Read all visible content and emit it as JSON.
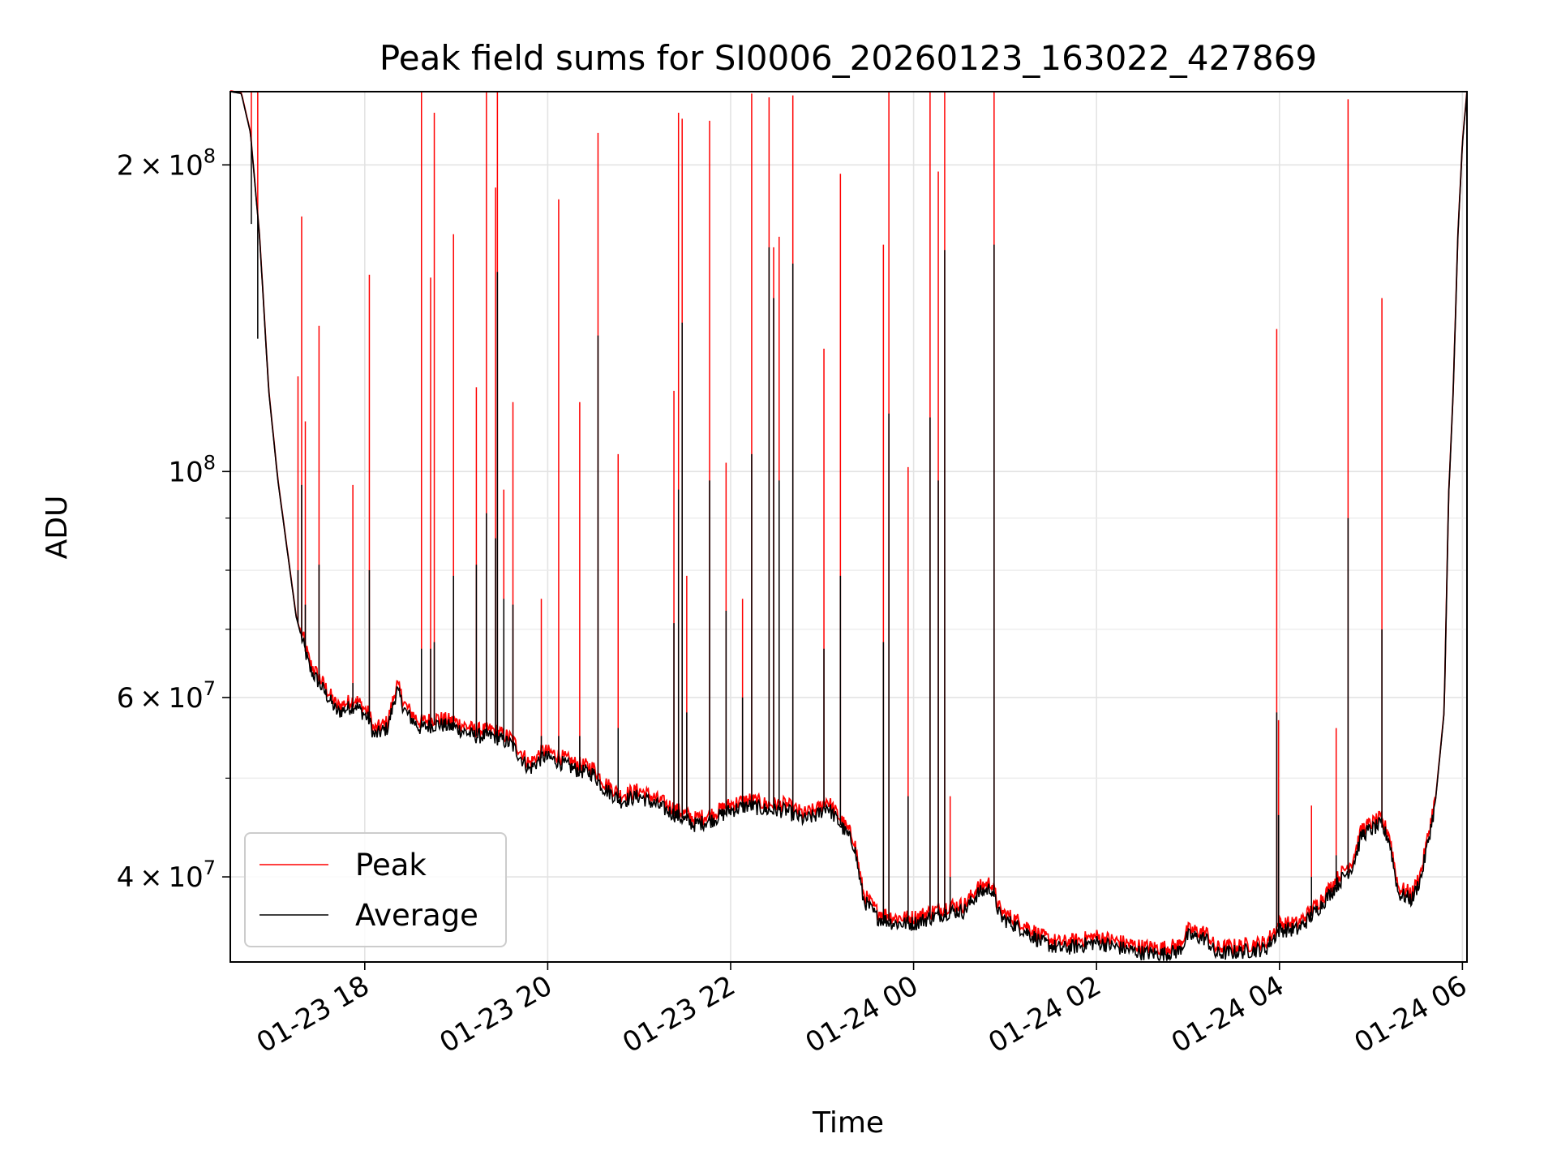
{
  "chart_data": {
    "type": "line",
    "title": "Peak field sums for SI0006_20260123_163022_427869",
    "xlabel": "Time",
    "ylabel": "ADU",
    "yscale": "log",
    "ylim": [
      33000000,
      236000000
    ],
    "xlim_hours": [
      16.53,
      30.05
    ],
    "x_origin": "2026-01-23 00:00",
    "grid": true,
    "legend_position": "lower-left",
    "x_ticks": [
      {
        "hours": 18,
        "label": "01-23 18"
      },
      {
        "hours": 20,
        "label": "01-23 20"
      },
      {
        "hours": 22,
        "label": "01-23 22"
      },
      {
        "hours": 24,
        "label": "01-24 00"
      },
      {
        "hours": 26,
        "label": "01-24 02"
      },
      {
        "hours": 28,
        "label": "01-24 04"
      },
      {
        "hours": 30,
        "label": "01-24 06"
      }
    ],
    "y_ticks": [
      {
        "value": 40000000,
        "mant": "4",
        "exp": "7",
        "kind": "mantissa"
      },
      {
        "value": 60000000,
        "mant": "6",
        "exp": "7",
        "kind": "mantissa"
      },
      {
        "value": 100000000,
        "mant": "10",
        "exp": "8",
        "kind": "power"
      },
      {
        "value": 200000000,
        "mant": "2",
        "exp": "8",
        "kind": "mantissa"
      }
    ],
    "y_minor_ticks": [
      50000000,
      70000000,
      80000000,
      90000000
    ],
    "series": [
      {
        "name": "Peak",
        "color": "#ff0000"
      },
      {
        "name": "Average",
        "color": "#000000"
      }
    ],
    "baseline": [
      [
        16.53,
        236000000
      ],
      [
        16.65,
        235000000
      ],
      [
        16.75,
        215000000
      ],
      [
        16.85,
        170000000
      ],
      [
        16.95,
        120000000
      ],
      [
        17.05,
        98000000
      ],
      [
        17.15,
        84000000
      ],
      [
        17.25,
        72000000
      ],
      [
        17.4,
        64000000
      ],
      [
        17.55,
        61000000
      ],
      [
        17.7,
        58000000
      ],
      [
        17.9,
        59000000
      ],
      [
        18.05,
        57000000
      ],
      [
        18.1,
        55000000
      ],
      [
        18.25,
        56000000
      ],
      [
        18.35,
        61000000
      ],
      [
        18.45,
        58000000
      ],
      [
        18.6,
        56000000
      ],
      [
        18.8,
        56500000
      ],
      [
        19.0,
        56000000
      ],
      [
        19.2,
        55000000
      ],
      [
        19.4,
        55000000
      ],
      [
        19.6,
        54000000
      ],
      [
        19.8,
        51000000
      ],
      [
        19.95,
        52500000
      ],
      [
        20.1,
        52000000
      ],
      [
        20.3,
        51000000
      ],
      [
        20.5,
        50500000
      ],
      [
        20.6,
        49000000
      ],
      [
        20.8,
        47500000
      ],
      [
        21.0,
        48000000
      ],
      [
        21.2,
        47000000
      ],
      [
        21.4,
        46000000
      ],
      [
        21.6,
        45000000
      ],
      [
        21.8,
        45500000
      ],
      [
        22.0,
        46500000
      ],
      [
        22.2,
        47000000
      ],
      [
        22.4,
        46500000
      ],
      [
        22.6,
        46500000
      ],
      [
        22.8,
        45500000
      ],
      [
        22.95,
        46000000
      ],
      [
        23.05,
        47000000
      ],
      [
        23.2,
        45000000
      ],
      [
        23.35,
        43000000
      ],
      [
        23.45,
        38000000
      ],
      [
        23.6,
        36500000
      ],
      [
        23.8,
        36000000
      ],
      [
        24.0,
        36000000
      ],
      [
        24.2,
        36500000
      ],
      [
        24.4,
        37000000
      ],
      [
        24.55,
        37000000
      ],
      [
        24.7,
        38500000
      ],
      [
        24.85,
        39000000
      ],
      [
        24.95,
        36500000
      ],
      [
        25.2,
        35500000
      ],
      [
        25.4,
        34500000
      ],
      [
        25.6,
        34000000
      ],
      [
        25.8,
        34200000
      ],
      [
        26.0,
        34500000
      ],
      [
        26.3,
        34000000
      ],
      [
        26.5,
        33700000
      ],
      [
        26.7,
        33600000
      ],
      [
        26.9,
        33800000
      ],
      [
        27.0,
        35000000
      ],
      [
        27.2,
        34800000
      ],
      [
        27.3,
        33600000
      ],
      [
        27.6,
        33800000
      ],
      [
        27.85,
        34000000
      ],
      [
        28.0,
        35500000
      ],
      [
        28.2,
        35500000
      ],
      [
        28.4,
        37000000
      ],
      [
        28.6,
        39000000
      ],
      [
        28.8,
        41000000
      ],
      [
        28.9,
        44000000
      ],
      [
        29.1,
        45000000
      ],
      [
        29.2,
        43500000
      ],
      [
        29.3,
        38500000
      ],
      [
        29.45,
        38000000
      ],
      [
        29.55,
        40000000
      ],
      [
        29.7,
        47000000
      ],
      [
        29.8,
        58000000
      ],
      [
        29.85,
        95000000
      ],
      [
        29.9,
        120000000
      ],
      [
        29.95,
        170000000
      ],
      [
        30.0,
        210000000
      ],
      [
        30.05,
        236000000
      ]
    ],
    "spikes": [
      [
        16.76,
        236000000,
        175000000
      ],
      [
        16.83,
        236000000,
        135000000
      ],
      [
        17.27,
        124000000,
        80000000
      ],
      [
        17.31,
        178000000,
        97000000
      ],
      [
        17.35,
        112000000,
        74000000
      ],
      [
        17.5,
        139000000,
        81000000
      ],
      [
        17.87,
        97000000,
        62000000
      ],
      [
        18.05,
        156000000,
        80000000
      ],
      [
        18.62,
        236000000,
        67000000
      ],
      [
        18.72,
        155000000,
        67000000
      ],
      [
        18.76,
        225000000,
        68000000
      ],
      [
        18.97,
        171000000,
        79000000
      ],
      [
        19.22,
        121000000,
        81000000
      ],
      [
        19.33,
        236000000,
        91000000
      ],
      [
        19.43,
        190000000,
        86000000
      ],
      [
        19.45,
        236000000,
        157000000
      ],
      [
        19.52,
        96000000,
        75000000
      ],
      [
        19.62,
        117000000,
        74000000
      ],
      [
        19.93,
        75000000,
        55000000
      ],
      [
        20.12,
        185000000,
        55000000
      ],
      [
        20.35,
        117000000,
        55000000
      ],
      [
        20.55,
        215000000,
        136000000
      ],
      [
        20.77,
        104000000,
        56000000
      ],
      [
        21.38,
        120000000,
        71000000
      ],
      [
        21.43,
        225000000,
        96000000
      ],
      [
        21.47,
        222000000,
        140000000
      ],
      [
        21.52,
        79000000,
        58000000
      ],
      [
        21.77,
        221000000,
        98000000
      ],
      [
        21.95,
        102000000,
        73000000
      ],
      [
        22.13,
        75000000,
        60000000
      ],
      [
        22.23,
        235000000,
        104000000
      ],
      [
        22.42,
        233000000,
        166000000
      ],
      [
        22.47,
        166000000,
        148000000
      ],
      [
        22.53,
        170000000,
        98000000
      ],
      [
        22.68,
        234000000,
        160000000
      ],
      [
        23.02,
        132000000,
        67000000
      ],
      [
        23.2,
        196000000,
        79000000
      ],
      [
        23.67,
        167000000,
        68000000
      ],
      [
        23.73,
        236000000,
        114000000
      ],
      [
        23.94,
        101000000,
        48000000
      ],
      [
        24.18,
        236000000,
        113000000
      ],
      [
        24.27,
        197000000,
        98000000
      ],
      [
        24.34,
        236000000,
        165000000
      ],
      [
        24.4,
        48000000,
        40000000
      ],
      [
        24.88,
        236000000,
        167000000
      ],
      [
        27.97,
        138000000,
        58000000
      ],
      [
        27.99,
        57000000,
        46000000
      ],
      [
        28.35,
        47000000,
        40000000
      ],
      [
        28.62,
        56000000,
        42000000
      ],
      [
        28.75,
        232000000,
        90000000
      ],
      [
        29.12,
        148000000,
        70000000
      ]
    ]
  }
}
